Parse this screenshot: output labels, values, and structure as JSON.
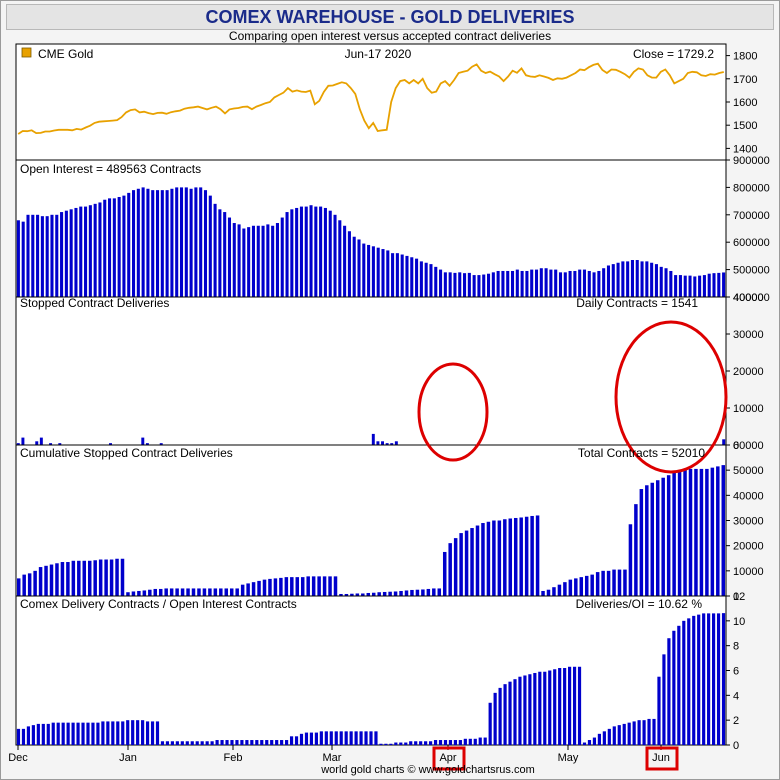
{
  "title": "COMEX WAREHOUSE - GOLD DELIVERIES",
  "subtitle": "Comparing open interest versus accepted contract deliveries",
  "credit": "world gold charts © www.goldchartsrus.com",
  "colors": {
    "gold_line": "#e8a100",
    "bars": "#0000cc",
    "highlight": "#dd0000",
    "title": "#1a2b8a"
  },
  "x_axis": {
    "months": [
      {
        "label": "Dec",
        "boxed": false
      },
      {
        "label": "Jan",
        "boxed": false
      },
      {
        "label": "Feb",
        "boxed": false
      },
      {
        "label": "Mar",
        "boxed": false
      },
      {
        "label": "Apr",
        "boxed": true
      },
      {
        "label": "May",
        "boxed": false
      },
      {
        "label": "Jun",
        "boxed": true
      }
    ]
  },
  "panels": {
    "gold": {
      "legend": "CME Gold",
      "date": "Jun-17  2020",
      "right_label": "Close = 1729.2",
      "legend_icon": "square-swatch"
    },
    "oi": {
      "left_label": "Open Interest = 489563 Contracts"
    },
    "stopped": {
      "left_label": "Stopped Contract Deliveries",
      "right_label": "Daily Contracts = 1541"
    },
    "cumulative": {
      "left_label": "Cumulative Stopped Contract Deliveries",
      "right_label": "Total Contracts = 52010"
    },
    "ratio": {
      "left_label": "Comex Delivery Contracts / Open Interest Contracts",
      "right_label": "Deliveries/OI = 10.62 %"
    }
  },
  "highlights": [
    {
      "label": "April delivery spike circled"
    },
    {
      "label": "June delivery spike circled"
    }
  ],
  "chart_data": [
    {
      "type": "line",
      "name": "CME Gold",
      "ylim": [
        1350,
        1850
      ],
      "yticks": [
        1400,
        1500,
        1600,
        1700,
        1800
      ],
      "values": [
        1462,
        1475,
        1474,
        1478,
        1466,
        1467,
        1473,
        1473,
        1477,
        1480,
        1480,
        1480,
        1478,
        1484,
        1481,
        1490,
        1498,
        1510,
        1515,
        1517,
        1518,
        1520,
        1522,
        1535,
        1555,
        1565,
        1568,
        1555,
        1558,
        1552,
        1548,
        1553,
        1554,
        1549,
        1556,
        1560,
        1563,
        1571,
        1575,
        1577,
        1580,
        1574,
        1568,
        1575,
        1580,
        1569,
        1551,
        1568,
        1572,
        1574,
        1579,
        1580,
        1569,
        1580,
        1587,
        1595,
        1600,
        1620,
        1630,
        1640,
        1660,
        1645,
        1650,
        1645,
        1643,
        1649,
        1590,
        1605,
        1643,
        1670,
        1671,
        1678,
        1685,
        1680,
        1660,
        1635,
        1569,
        1520,
        1487,
        1510,
        1475,
        1478,
        1480,
        1600,
        1660,
        1690,
        1695,
        1680,
        1695,
        1680,
        1700,
        1660,
        1640,
        1645,
        1680,
        1690,
        1670,
        1695,
        1725,
        1730,
        1735,
        1752,
        1762,
        1735,
        1725,
        1731,
        1720,
        1710,
        1690,
        1710,
        1735,
        1726,
        1745,
        1715,
        1710,
        1708,
        1715,
        1710,
        1704,
        1695,
        1702,
        1700,
        1705,
        1715,
        1725,
        1740,
        1737,
        1750,
        1760,
        1765,
        1738,
        1725,
        1740,
        1739,
        1730,
        1720,
        1705,
        1730,
        1745,
        1740,
        1715,
        1705,
        1705,
        1730,
        1740,
        1715,
        1680,
        1690,
        1700,
        1725,
        1730,
        1728,
        1715,
        1712,
        1720,
        1718,
        1725,
        1729.2
      ]
    },
    {
      "type": "bar",
      "name": "Open Interest",
      "ylim": [
        400000,
        900000
      ],
      "yticks": [
        400000,
        500000,
        600000,
        700000,
        800000,
        900000
      ],
      "values": [
        680000,
        675000,
        700000,
        700000,
        700000,
        695000,
        695000,
        700000,
        700000,
        710000,
        715000,
        720000,
        725000,
        730000,
        730000,
        735000,
        740000,
        745000,
        755000,
        760000,
        760000,
        765000,
        770000,
        780000,
        790000,
        795000,
        800000,
        795000,
        790000,
        790000,
        790000,
        790000,
        795000,
        800000,
        800000,
        800000,
        795000,
        800000,
        800000,
        790000,
        770000,
        740000,
        720000,
        710000,
        690000,
        670000,
        665000,
        650000,
        655000,
        660000,
        660000,
        660000,
        665000,
        660000,
        670000,
        690000,
        710000,
        720000,
        725000,
        730000,
        730000,
        735000,
        730000,
        730000,
        725000,
        715000,
        700000,
        680000,
        660000,
        640000,
        620000,
        610000,
        595000,
        590000,
        585000,
        580000,
        575000,
        570000,
        560000,
        560000,
        555000,
        550000,
        545000,
        540000,
        530000,
        525000,
        520000,
        510000,
        500000,
        490000,
        490000,
        488000,
        490000,
        487000,
        488000,
        480000,
        480000,
        482000,
        485000,
        490000,
        495000,
        495000,
        495000,
        495000,
        500000,
        495000,
        495000,
        500000,
        500000,
        505000,
        505000,
        500000,
        500000,
        490000,
        490000,
        495000,
        495000,
        500000,
        500000,
        495000,
        490000,
        495000,
        505000,
        515000,
        520000,
        525000,
        530000,
        530000,
        535000,
        535000,
        530000,
        530000,
        525000,
        520000,
        510000,
        505000,
        495000,
        480000,
        480000,
        478000,
        478000,
        475000,
        478000,
        480000,
        485000,
        487000,
        488000,
        489563
      ]
    },
    {
      "type": "bar",
      "name": "Stopped Contract Deliveries",
      "ylim": [
        0,
        40000
      ],
      "yticks": [
        0,
        10000,
        20000,
        30000,
        40000
      ],
      "values": [
        500,
        2000,
        0,
        0,
        1000,
        2000,
        0,
        500,
        0,
        500,
        0,
        0,
        0,
        0,
        0,
        0,
        0,
        0,
        0,
        0,
        500,
        0,
        0,
        0,
        0,
        0,
        0,
        2000,
        500,
        0,
        0,
        500,
        0,
        0,
        0,
        0,
        0,
        0,
        0,
        0,
        0,
        0,
        0,
        0,
        0,
        0,
        0,
        0,
        0,
        0,
        0,
        0,
        0,
        0,
        0,
        0,
        0,
        0,
        0,
        0,
        0,
        0,
        0,
        0,
        0,
        0,
        0,
        0,
        0,
        0,
        0,
        0,
        0,
        0,
        0,
        0,
        0,
        3000,
        1000,
        1000,
        500,
        500,
        1000,
        0,
        0,
        0,
        0,
        0,
        0,
        0,
        0,
        0,
        0,
        0,
        0,
        0,
        0,
        0,
        0,
        0,
        0,
        0,
        0,
        0,
        0,
        0,
        0,
        0,
        0,
        0,
        0,
        0,
        0,
        0,
        0,
        0,
        0,
        0,
        0,
        0,
        0,
        0,
        0,
        0,
        0,
        0,
        0,
        0,
        0,
        0,
        0,
        0,
        0,
        0,
        0,
        0,
        0,
        0,
        0,
        0,
        0,
        0,
        0,
        0,
        0,
        0,
        0,
        0,
        0,
        0,
        0,
        0,
        0,
        1541
      ]
    },
    {
      "type": "bar",
      "name": "Cumulative Stopped Contract Deliveries",
      "ylim": [
        0,
        60000
      ],
      "yticks": [
        0,
        10000,
        20000,
        30000,
        40000,
        50000,
        60000
      ],
      "values": [
        7000,
        8500,
        9000,
        10000,
        11500,
        12000,
        12500,
        13000,
        13500,
        13500,
        14000,
        14000,
        14000,
        14000,
        14200,
        14500,
        14500,
        14500,
        14800,
        14800,
        1500,
        1800,
        2000,
        2200,
        2500,
        2800,
        2800,
        3000,
        3000,
        3000,
        3000,
        3000,
        3000,
        3000,
        3000,
        3000,
        3000,
        3000,
        3000,
        3000,
        3000,
        4500,
        5000,
        5500,
        6000,
        6500,
        6800,
        7000,
        7200,
        7500,
        7500,
        7500,
        7500,
        7800,
        7800,
        7800,
        7800,
        7800,
        7800,
        800,
        800,
        900,
        1000,
        1000,
        1200,
        1300,
        1500,
        1600,
        1700,
        1800,
        2000,
        2200,
        2400,
        2500,
        2600,
        2800,
        3000,
        3000,
        17500,
        21000,
        23000,
        25000,
        26000,
        27000,
        28000,
        29000,
        29500,
        30000,
        30000,
        30500,
        30800,
        31000,
        31200,
        31500,
        31800,
        32000,
        2000,
        2500,
        3500,
        4500,
        5500,
        6500,
        7000,
        7500,
        8000,
        8500,
        9500,
        10000,
        10000,
        10500,
        10500,
        10500,
        28500,
        36500,
        42500,
        44000,
        45000,
        46000,
        47000,
        48000,
        49000,
        49500,
        50000,
        50500,
        50500,
        50500,
        50500,
        51000,
        51500,
        52010
      ]
    },
    {
      "type": "bar",
      "name": "Comex Delivery Contracts / Open Interest Contracts",
      "ylim": [
        0,
        12
      ],
      "yticks": [
        0,
        2,
        4,
        6,
        8,
        10,
        12
      ],
      "values": [
        1.3,
        1.3,
        1.5,
        1.6,
        1.7,
        1.7,
        1.7,
        1.8,
        1.8,
        1.8,
        1.8,
        1.8,
        1.8,
        1.8,
        1.8,
        1.8,
        1.8,
        1.9,
        1.9,
        1.9,
        1.9,
        1.9,
        2.0,
        2.0,
        2.0,
        2.0,
        1.9,
        1.9,
        1.9,
        0.3,
        0.3,
        0.3,
        0.3,
        0.3,
        0.3,
        0.3,
        0.3,
        0.3,
        0.3,
        0.3,
        0.4,
        0.4,
        0.4,
        0.4,
        0.4,
        0.4,
        0.4,
        0.4,
        0.4,
        0.4,
        0.4,
        0.4,
        0.4,
        0.4,
        0.4,
        0.7,
        0.7,
        0.9,
        1.0,
        1.0,
        1.0,
        1.1,
        1.1,
        1.1,
        1.1,
        1.1,
        1.1,
        1.1,
        1.1,
        1.1,
        1.1,
        1.1,
        1.1,
        0.1,
        0.1,
        0.1,
        0.2,
        0.2,
        0.2,
        0.3,
        0.3,
        0.3,
        0.3,
        0.3,
        0.4,
        0.4,
        0.4,
        0.4,
        0.4,
        0.4,
        0.5,
        0.5,
        0.5,
        0.6,
        0.6,
        3.4,
        4.2,
        4.6,
        4.9,
        5.1,
        5.3,
        5.5,
        5.6,
        5.7,
        5.8,
        5.9,
        5.9,
        6.0,
        6.1,
        6.2,
        6.2,
        6.3,
        6.3,
        6.3,
        0.2,
        0.4,
        0.6,
        0.9,
        1.1,
        1.3,
        1.5,
        1.6,
        1.7,
        1.8,
        1.9,
        2.0,
        2.0,
        2.1,
        2.1,
        5.5,
        7.3,
        8.6,
        9.2,
        9.6,
        10.0,
        10.2,
        10.4,
        10.5,
        10.6,
        10.6,
        10.6,
        10.6,
        10.62
      ]
    }
  ]
}
